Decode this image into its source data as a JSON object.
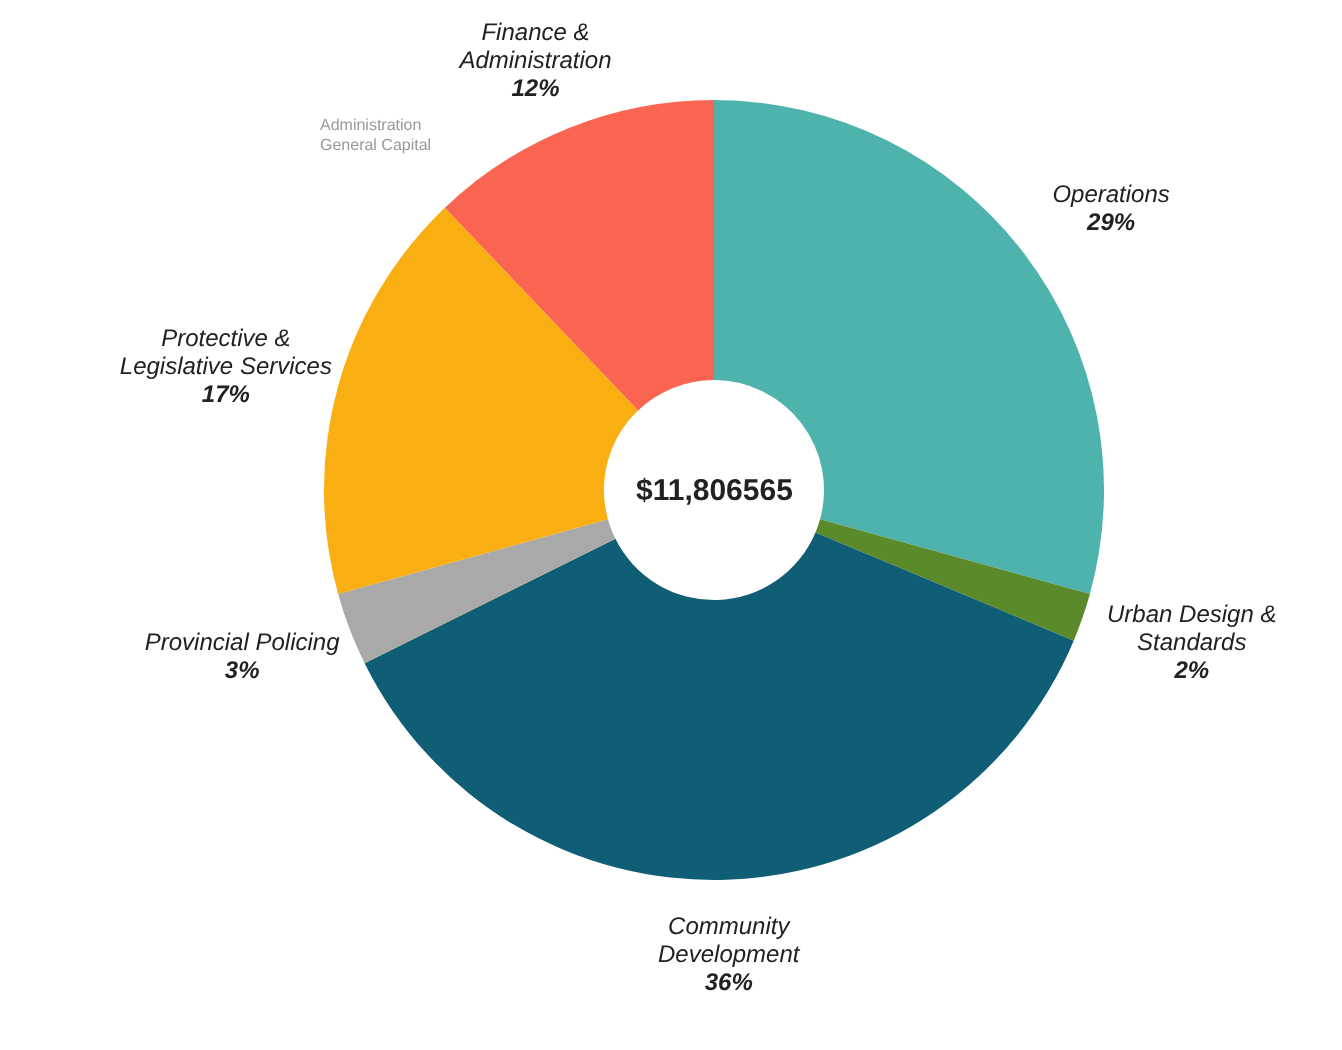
{
  "chart_data": {
    "type": "donut",
    "categories": [
      "Operations",
      "Urban Design & Standards",
      "Community Development",
      "Provincial Policing",
      "Protective & Legislative Services",
      "Finance & Administration"
    ],
    "values": [
      29,
      2,
      36,
      3,
      17,
      12
    ],
    "value_labels": [
      "29%",
      "2%",
      "36%",
      "3%",
      "17%",
      "12%"
    ],
    "colors": [
      "#4fb3ad",
      "#5a8a2a",
      "#0f5e75",
      "#a9a9a9",
      "#f9ae12",
      "#f96550"
    ],
    "annotations": [
      "$11,806565",
      "Administration General Capital"
    ],
    "legend": false
  }
}
